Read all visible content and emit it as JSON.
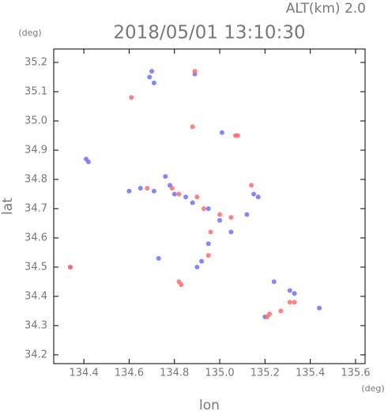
{
  "chart_data": {
    "type": "scatter",
    "title": "2018/05/01 13:10:30",
    "subtitle": "ALT(km) 2.0",
    "x_label": "lon",
    "x_unit": "(deg)",
    "y_label": "lat",
    "y_unit": "(deg)",
    "xlim": [
      134.267,
      135.642
    ],
    "ylim": [
      34.17,
      35.246
    ],
    "xticks": [
      134.4,
      134.6,
      134.8,
      {
        "value": 135.0,
        "label": "135.0"
      },
      135.2,
      135.4,
      135.6
    ],
    "yticks": [
      34.2,
      34.3,
      34.4,
      34.5,
      34.6,
      34.7,
      34.8,
      34.9,
      {
        "value": 35.0,
        "label": "35.0"
      },
      35.1,
      35.2
    ],
    "series": [
      {
        "color": "#7070ff",
        "x": [
          134.41,
          134.42,
          134.7,
          134.69,
          134.71,
          134.6,
          134.65,
          134.71,
          134.76,
          134.78,
          134.8,
          134.85,
          134.88,
          134.95,
          135.0,
          135.05,
          134.95,
          134.73,
          134.9,
          134.92,
          135.01,
          135.12,
          135.15,
          135.17,
          135.24,
          135.31,
          135.33,
          135.44,
          135.2,
          134.89,
          134.34
        ],
        "values": [
          34.87,
          34.86,
          35.17,
          35.15,
          35.13,
          34.76,
          34.77,
          34.76,
          34.81,
          34.78,
          34.75,
          34.74,
          34.72,
          34.7,
          34.66,
          34.62,
          34.58,
          34.53,
          34.5,
          34.52,
          34.96,
          34.68,
          34.75,
          34.74,
          34.45,
          34.42,
          34.41,
          34.36,
          34.33,
          35.16,
          34.5
        ]
      },
      {
        "color": "#ff6b6b",
        "x": [
          134.61,
          134.88,
          135.07,
          135.08,
          134.68,
          134.79,
          134.82,
          134.9,
          134.93,
          135.0,
          135.05,
          134.96,
          134.82,
          134.83,
          134.95,
          135.14,
          135.22,
          135.21,
          135.31,
          135.33,
          135.27,
          134.34,
          134.89
        ],
        "values": [
          35.08,
          34.98,
          34.95,
          34.95,
          34.77,
          34.77,
          34.75,
          34.74,
          34.7,
          34.68,
          34.67,
          34.62,
          34.45,
          34.44,
          34.54,
          34.78,
          34.34,
          34.33,
          34.38,
          34.38,
          34.35,
          34.5,
          35.17
        ]
      }
    ]
  }
}
